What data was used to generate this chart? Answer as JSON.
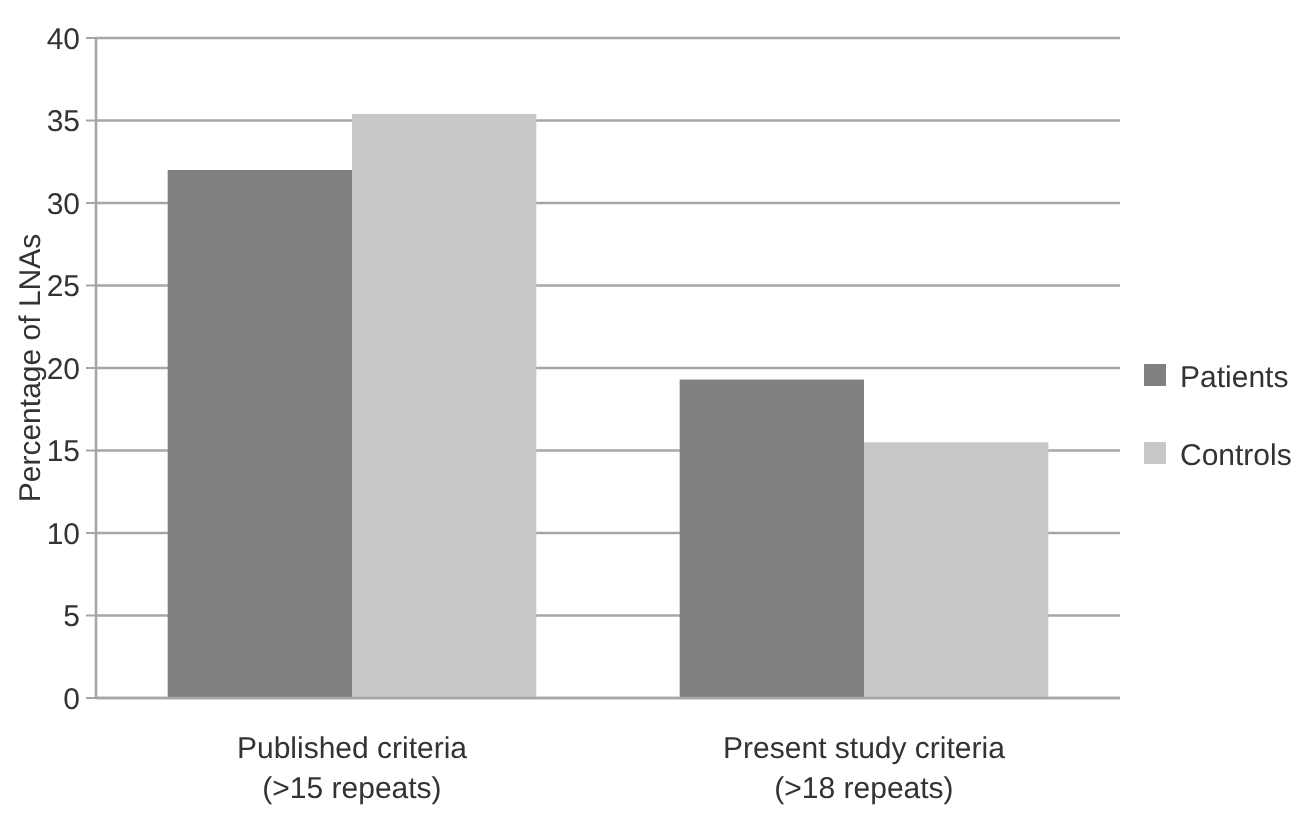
{
  "chart_data": {
    "type": "bar",
    "ylabel": "Percentage of LNAs",
    "categories": [
      "Published criteria\n(>15 repeats)",
      "Present study criteria\n(>18 repeats)"
    ],
    "series": [
      {
        "name": "Patients",
        "color": "#808080",
        "values": [
          32.0,
          19.3
        ]
      },
      {
        "name": "Controls",
        "color": "#c8c8c8",
        "values": [
          35.4,
          15.5
        ]
      }
    ],
    "ylim": [
      0,
      40
    ],
    "yticks": [
      0,
      5,
      10,
      15,
      20,
      25,
      30,
      35,
      40
    ],
    "grid": "y",
    "legend": "right"
  }
}
